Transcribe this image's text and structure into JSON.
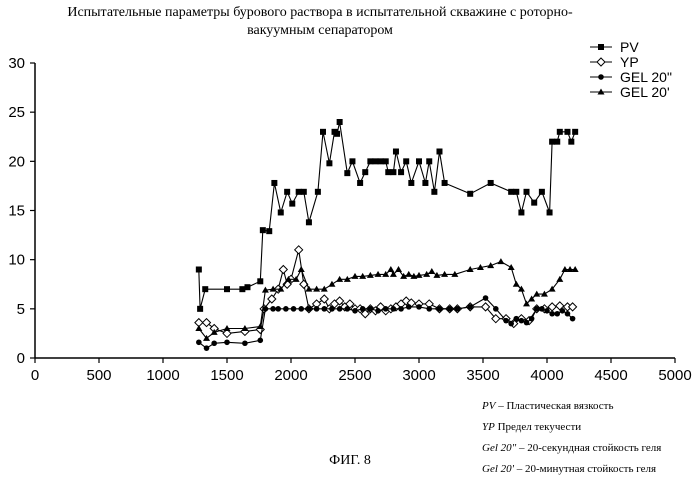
{
  "figure_caption": "ФИГ. 8",
  "definitions": [
    {
      "term": "PV",
      "sep": " – ",
      "text": "Пластическая вязкость"
    },
    {
      "term": "YP",
      "sep": " ",
      "text": "Предел текучести"
    },
    {
      "term": "Gel 20\"",
      "sep": " – ",
      "text": "20-секундная стойкость геля"
    },
    {
      "term": "Gel 20'",
      "sep": " – ",
      "text": "20-минутная стойкость геля"
    }
  ],
  "chart_data": {
    "type": "line",
    "title_line1": "Испытательные параметры бурового раствора в испытательной скважине с роторно-",
    "title_line2": "вакуумным сепаратором",
    "xlabel": "",
    "ylabel": "",
    "xlim": [
      0,
      5000
    ],
    "ylim": [
      0,
      30
    ],
    "xticks": [
      "0",
      "500",
      "1000",
      "1500",
      "2000",
      "2500",
      "3000",
      "3500",
      "4000",
      "4500",
      "5000"
    ],
    "yticks": [
      "0",
      "5",
      "10",
      "15",
      "20",
      "25",
      "30"
    ],
    "grid": false,
    "legend_position": "top-right",
    "series": [
      {
        "name": "PV",
        "marker": "square",
        "points": [
          [
            1280,
            9
          ],
          [
            1290,
            5
          ],
          [
            1330,
            7
          ],
          [
            1500,
            7
          ],
          [
            1620,
            7
          ],
          [
            1660,
            7.2
          ],
          [
            1760,
            7.8
          ],
          [
            1780,
            13
          ],
          [
            1830,
            12.9
          ],
          [
            1870,
            17.8
          ],
          [
            1920,
            14.8
          ],
          [
            1970,
            16.9
          ],
          [
            2010,
            15.7
          ],
          [
            2060,
            16.9
          ],
          [
            2100,
            16.9
          ],
          [
            2140,
            13.8
          ],
          [
            2210,
            16.9
          ],
          [
            2250,
            23
          ],
          [
            2300,
            19.8
          ],
          [
            2340,
            23
          ],
          [
            2360,
            22.8
          ],
          [
            2380,
            24
          ],
          [
            2440,
            18.8
          ],
          [
            2480,
            20
          ],
          [
            2540,
            17.8
          ],
          [
            2580,
            18.9
          ],
          [
            2620,
            20
          ],
          [
            2660,
            20
          ],
          [
            2700,
            20
          ],
          [
            2740,
            20
          ],
          [
            2760,
            18.9
          ],
          [
            2800,
            18.9
          ],
          [
            2820,
            21
          ],
          [
            2860,
            18.9
          ],
          [
            2900,
            20
          ],
          [
            2940,
            17.8
          ],
          [
            3000,
            20
          ],
          [
            3050,
            17.8
          ],
          [
            3080,
            20
          ],
          [
            3120,
            16.9
          ],
          [
            3160,
            21
          ],
          [
            3200,
            17.8
          ],
          [
            3400,
            16.7
          ],
          [
            3560,
            17.8
          ],
          [
            3720,
            16.9
          ],
          [
            3760,
            16.9
          ],
          [
            3800,
            14.8
          ],
          [
            3840,
            16.9
          ],
          [
            3900,
            15.8
          ],
          [
            3960,
            16.9
          ],
          [
            4020,
            14.8
          ],
          [
            4040,
            22
          ],
          [
            4080,
            22
          ],
          [
            4100,
            23
          ],
          [
            4160,
            23
          ],
          [
            4190,
            22
          ],
          [
            4220,
            23
          ]
        ]
      },
      {
        "name": "YP",
        "marker": "diamond",
        "points": [
          [
            1280,
            3.6
          ],
          [
            1340,
            3.6
          ],
          [
            1400,
            3
          ],
          [
            1500,
            2.5
          ],
          [
            1640,
            2.7
          ],
          [
            1760,
            2.9
          ],
          [
            1790,
            5
          ],
          [
            1850,
            6
          ],
          [
            1900,
            7
          ],
          [
            1940,
            9
          ],
          [
            1970,
            7.5
          ],
          [
            2000,
            8
          ],
          [
            2060,
            11
          ],
          [
            2100,
            7.5
          ],
          [
            2140,
            5
          ],
          [
            2200,
            5.5
          ],
          [
            2260,
            6
          ],
          [
            2300,
            5
          ],
          [
            2340,
            5.5
          ],
          [
            2380,
            5.8
          ],
          [
            2420,
            5.2
          ],
          [
            2460,
            5.5
          ],
          [
            2500,
            5
          ],
          [
            2540,
            5
          ],
          [
            2580,
            4.5
          ],
          [
            2620,
            5
          ],
          [
            2660,
            4.8
          ],
          [
            2700,
            5.2
          ],
          [
            2740,
            4.8
          ],
          [
            2780,
            5
          ],
          [
            2820,
            5.2
          ],
          [
            2860,
            5.5
          ],
          [
            2900,
            5.8
          ],
          [
            2940,
            5.6
          ],
          [
            3000,
            5.5
          ],
          [
            3080,
            5.5
          ],
          [
            3160,
            5
          ],
          [
            3240,
            5
          ],
          [
            3300,
            5
          ],
          [
            3400,
            5.2
          ],
          [
            3520,
            5.2
          ],
          [
            3600,
            4
          ],
          [
            3680,
            4
          ],
          [
            3740,
            3.5
          ],
          [
            3800,
            4
          ],
          [
            3860,
            3.8
          ],
          [
            3920,
            5
          ],
          [
            3980,
            5
          ],
          [
            4040,
            5.2
          ],
          [
            4100,
            5.3
          ],
          [
            4160,
            5.2
          ],
          [
            4200,
            5.2
          ]
        ]
      },
      {
        "name": "GEL 20\"",
        "marker": "circle",
        "points": [
          [
            1280,
            1.6
          ],
          [
            1340,
            1
          ],
          [
            1400,
            1.5
          ],
          [
            1500,
            1.6
          ],
          [
            1640,
            1.5
          ],
          [
            1760,
            1.8
          ],
          [
            1800,
            5
          ],
          [
            1860,
            5
          ],
          [
            1900,
            5
          ],
          [
            1960,
            5
          ],
          [
            2020,
            5
          ],
          [
            2080,
            5
          ],
          [
            2140,
            5
          ],
          [
            2200,
            5
          ],
          [
            2260,
            5
          ],
          [
            2320,
            5
          ],
          [
            2380,
            5
          ],
          [
            2440,
            5
          ],
          [
            2500,
            4.8
          ],
          [
            2560,
            5
          ],
          [
            2620,
            5
          ],
          [
            2680,
            4.8
          ],
          [
            2740,
            5
          ],
          [
            2800,
            5
          ],
          [
            2860,
            5
          ],
          [
            2920,
            5.2
          ],
          [
            3000,
            5.2
          ],
          [
            3080,
            5
          ],
          [
            3160,
            5
          ],
          [
            3240,
            5
          ],
          [
            3300,
            5
          ],
          [
            3400,
            5.2
          ],
          [
            3520,
            6.1
          ],
          [
            3600,
            5
          ],
          [
            3680,
            3.8
          ],
          [
            3720,
            3.5
          ],
          [
            3760,
            4
          ],
          [
            3800,
            3.8
          ],
          [
            3840,
            3.6
          ],
          [
            3880,
            4
          ],
          [
            3920,
            5
          ],
          [
            3960,
            5
          ],
          [
            4000,
            4.8
          ],
          [
            4040,
            4.5
          ],
          [
            4080,
            4.5
          ],
          [
            4120,
            4.8
          ],
          [
            4160,
            4.5
          ],
          [
            4200,
            4
          ]
        ]
      },
      {
        "name": "GEL 20'",
        "marker": "triangle",
        "points": [
          [
            1280,
            3
          ],
          [
            1340,
            2
          ],
          [
            1400,
            2.6
          ],
          [
            1500,
            3
          ],
          [
            1640,
            3
          ],
          [
            1760,
            3.2
          ],
          [
            1800,
            6.9
          ],
          [
            1860,
            7
          ],
          [
            1920,
            7
          ],
          [
            1980,
            8
          ],
          [
            2040,
            8
          ],
          [
            2080,
            9
          ],
          [
            2140,
            7
          ],
          [
            2200,
            7
          ],
          [
            2260,
            7
          ],
          [
            2320,
            7.5
          ],
          [
            2380,
            8
          ],
          [
            2440,
            8
          ],
          [
            2500,
            8.3
          ],
          [
            2560,
            8.3
          ],
          [
            2620,
            8.4
          ],
          [
            2680,
            8.5
          ],
          [
            2740,
            8.5
          ],
          [
            2780,
            9
          ],
          [
            2800,
            8.5
          ],
          [
            2840,
            9
          ],
          [
            2880,
            8.3
          ],
          [
            2920,
            8.5
          ],
          [
            2960,
            8.3
          ],
          [
            3000,
            8.4
          ],
          [
            3060,
            8.5
          ],
          [
            3100,
            8.8
          ],
          [
            3140,
            8.4
          ],
          [
            3200,
            8.5
          ],
          [
            3280,
            8.5
          ],
          [
            3400,
            9
          ],
          [
            3480,
            9.2
          ],
          [
            3560,
            9.4
          ],
          [
            3640,
            9.8
          ],
          [
            3720,
            9.2
          ],
          [
            3760,
            7.5
          ],
          [
            3800,
            7
          ],
          [
            3840,
            5.5
          ],
          [
            3880,
            6
          ],
          [
            3920,
            6.5
          ],
          [
            3980,
            6.5
          ],
          [
            4040,
            7
          ],
          [
            4100,
            8
          ],
          [
            4140,
            9
          ],
          [
            4180,
            9
          ],
          [
            4220,
            9
          ]
        ]
      }
    ]
  }
}
